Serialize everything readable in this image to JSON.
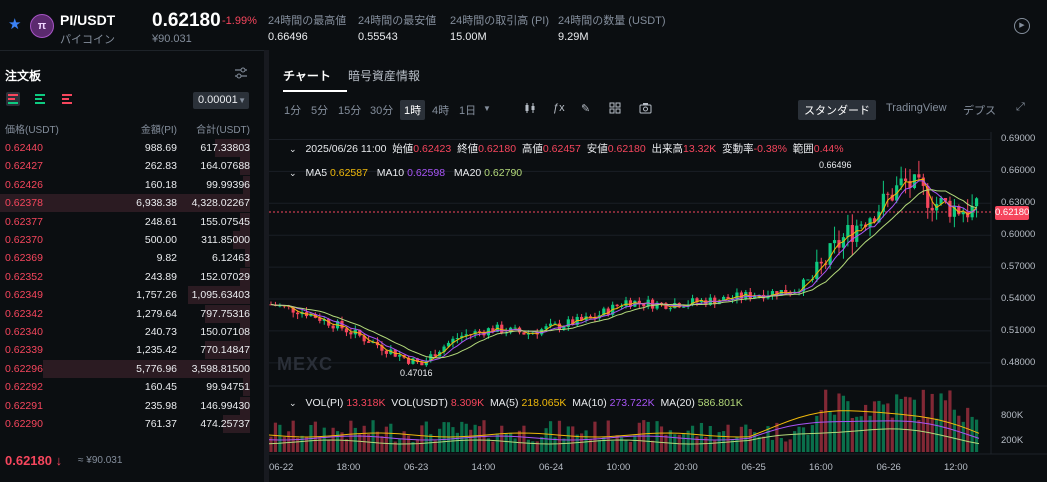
{
  "header": {
    "pair": "PI/USDT",
    "pair_sub": "パイコイン",
    "coin_icon": "pi-coin-icon",
    "price": "0.62180",
    "change": "-1.99%",
    "price_sub": "¥90.031",
    "stats": [
      {
        "label": "24時間の最高値",
        "value": "0.66496"
      },
      {
        "label": "24時間の最安値",
        "value": "0.55543"
      },
      {
        "label": "24時間の取引高 (PI)",
        "value": "15.00M"
      },
      {
        "label": "24時間の数量 (USDT)",
        "value": "9.29M"
      }
    ]
  },
  "orderbook": {
    "title": "注文板",
    "precision": "0.00001",
    "col_price": "価格(USDT)",
    "col_amount": "金額(PI)",
    "col_total": "合計(USDT)",
    "rows": [
      {
        "price": "0.62440",
        "amount": "988.69",
        "total": "617.33803"
      },
      {
        "price": "0.62427",
        "amount": "262.83",
        "total": "164.07688"
      },
      {
        "price": "0.62426",
        "amount": "160.18",
        "total": "99.99396"
      },
      {
        "price": "0.62378",
        "amount": "6,938.38",
        "total": "4,328.02267"
      },
      {
        "price": "0.62377",
        "amount": "248.61",
        "total": "155.07545"
      },
      {
        "price": "0.62370",
        "amount": "500.00",
        "total": "311.85000"
      },
      {
        "price": "0.62369",
        "amount": "9.82",
        "total": "6.12463"
      },
      {
        "price": "0.62352",
        "amount": "243.89",
        "total": "152.07029"
      },
      {
        "price": "0.62349",
        "amount": "1,757.26",
        "total": "1,095.63403"
      },
      {
        "price": "0.62342",
        "amount": "1,279.64",
        "total": "797.75316"
      },
      {
        "price": "0.62340",
        "amount": "240.73",
        "total": "150.07108"
      },
      {
        "price": "0.62339",
        "amount": "1,235.42",
        "total": "770.14847"
      },
      {
        "price": "0.62296",
        "amount": "5,776.96",
        "total": "3,598.81500"
      },
      {
        "price": "0.62292",
        "amount": "160.45",
        "total": "99.94751"
      },
      {
        "price": "0.62291",
        "amount": "235.98",
        "total": "146.99430"
      },
      {
        "price": "0.62290",
        "amount": "761.37",
        "total": "474.25737"
      }
    ],
    "depth": [
      0.14,
      0.04,
      0.03,
      1.0,
      0.04,
      0.07,
      0.01,
      0.04,
      0.25,
      0.18,
      0.04,
      0.18,
      0.83,
      0.03,
      0.04,
      0.11
    ],
    "last_price": "0.62180",
    "last_arrow": "↓",
    "last_sub": "≈ ¥90.031"
  },
  "chart_panel": {
    "tabs": [
      "チャート",
      "暗号資産情報"
    ],
    "timeframes": [
      "1分",
      "5分",
      "15分",
      "30分",
      "1時",
      "4時",
      "1日"
    ],
    "selected_timeframe": "1時",
    "view_tabs": [
      "スタンダード",
      "TradingView",
      "デプス"
    ],
    "ohlc": {
      "date": "2025/06/26 11:00",
      "open_label": "始値",
      "open": "0.62423",
      "close_label": "終値",
      "close": "0.62180",
      "high_label": "高値",
      "high": "0.62457",
      "low_label": "安値",
      "low": "0.62180",
      "vol_label": "出来高",
      "vol": "13.32K",
      "chg_label": "変動率",
      "chg": "-0.38%",
      "range_label": "範囲",
      "range": "0.44%"
    },
    "ma": {
      "ma5_label": "MA5",
      "ma5": "0.62587",
      "ma10_label": "MA10",
      "ma10": "0.62598",
      "ma20_label": "MA20",
      "ma20": "0.62790"
    },
    "vol_ind": {
      "vol_pi_label": "VOL(PI)",
      "vol_pi": "13.318K",
      "vol_usdt_label": "VOL(USDT)",
      "vol_usdt": "8.309K",
      "ma5_label": "MA(5)",
      "ma5": "218.065K",
      "ma10_label": "MA(10)",
      "ma10": "273.722K",
      "ma20_label": "MA(20)",
      "ma20": "586.801K"
    },
    "current_price_tag": "0.62180",
    "high_marker": "0.66496",
    "low_marker": "0.47016",
    "watermark": "MEXC"
  },
  "chart_data": {
    "type": "candlestick",
    "y_ticks": [
      "0.69000",
      "0.66000",
      "0.63000",
      "0.60000",
      "0.57000",
      "0.54000",
      "0.51000",
      "0.48000"
    ],
    "ylim": [
      0.462,
      0.697
    ],
    "vol_ticks": [
      "800K",
      "200K"
    ],
    "x_ticks": [
      "06-22",
      "18:00",
      "06-23",
      "14:00",
      "06-24",
      "10:00",
      "20:00",
      "06-25",
      "16:00",
      "06-26",
      "12:00"
    ],
    "colors": {
      "up": "#0ecb81",
      "down": "#f6465d",
      "ma5": "#f0b90b",
      "ma10": "#a855f7",
      "ma20": "#b3d97a"
    }
  }
}
